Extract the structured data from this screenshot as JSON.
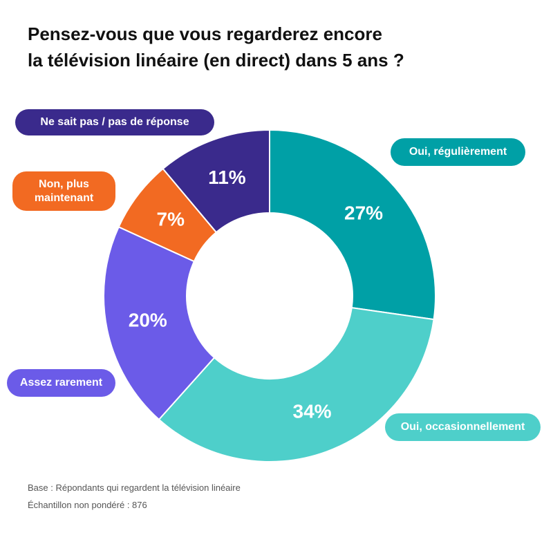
{
  "chart_data": {
    "type": "donut",
    "title": [
      "Pensez-vous que vous regarderez encore",
      "la télévision linéaire (en direct) dans 5 ans ?"
    ],
    "categories": [
      "Oui, régulièrement",
      "Oui, occasionnellement",
      "Assez rarement",
      "Non, plus maintenant",
      "Ne sait pas / pas de réponse"
    ],
    "values": [
      27,
      34,
      20,
      7,
      11
    ],
    "value_labels": [
      "27%",
      "34%",
      "20%",
      "7%",
      "11%"
    ],
    "colors": [
      "#00a0a6",
      "#4ecfca",
      "#6b5be8",
      "#f26a22",
      "#3a2a8c"
    ],
    "notes": [
      "Base : Répondants qui regardent la télévision linéaire",
      "Échantillon non pondéré : 876"
    ]
  }
}
